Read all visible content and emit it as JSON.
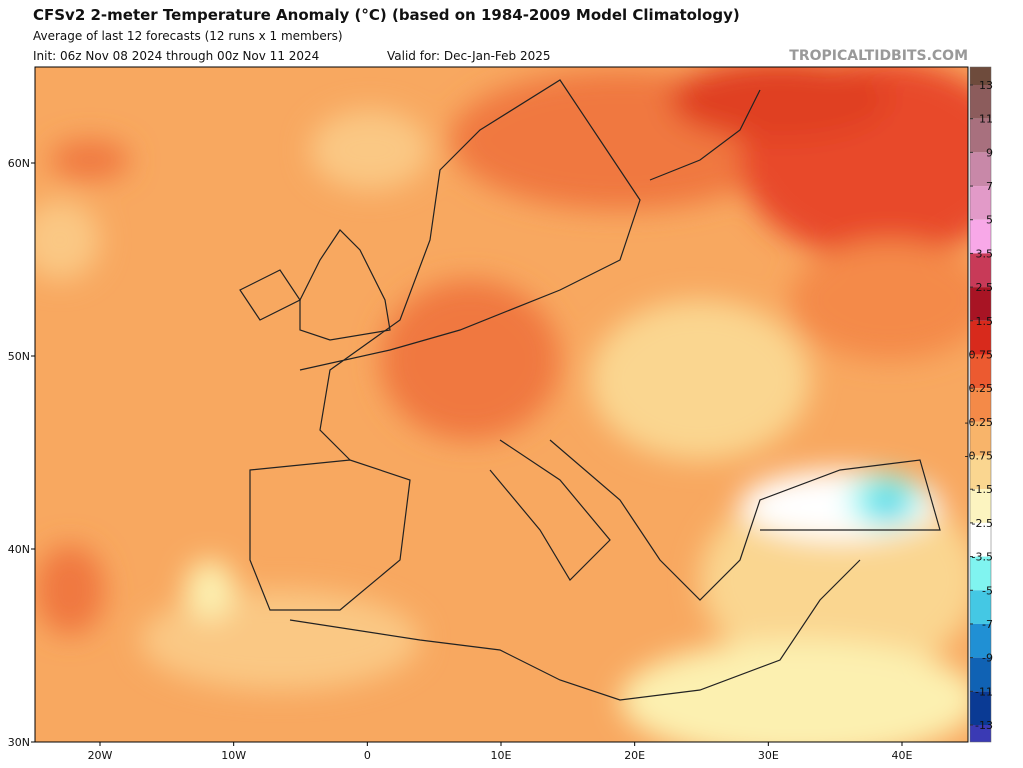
{
  "header": {
    "title": "CFSv2 2-meter Temperature Anomaly (°C) (based on 1984-2009 Model Climatology)",
    "subtitle": "Average of last 12 forecasts (12 runs x 1 members)",
    "init": "Init: 06z Nov 08 2024 through 00z Nov 11 2024",
    "valid": "Valid for: Dec-Jan-Feb 2025",
    "credit": "TROPICALTIDBITS.COM"
  },
  "map": {
    "lat_labels": [
      "60N",
      "50N",
      "40N",
      "30N"
    ],
    "lon_labels": [
      "20W",
      "10W",
      "0",
      "10E",
      "20E",
      "30E",
      "40E"
    ]
  },
  "colorbar": {
    "labels": [
      "13",
      "11",
      "9",
      "7",
      "5",
      "3.5",
      "2.5",
      "1.5",
      "0.75",
      "0.25",
      "-0.25",
      "-0.75",
      "-1.5",
      "-2.5",
      "-3.5",
      "-5",
      "-7",
      "-9",
      "-11",
      "-13"
    ],
    "colors": [
      "#6e4b3c",
      "#8c5c5c",
      "#a8707e",
      "#c888a8",
      "#e29ac8",
      "#f8a8e8",
      "#c83a58",
      "#a81424",
      "#d82a1c",
      "#ec5a30",
      "#f48a48",
      "#f8b46a",
      "#fad690",
      "#fcf4c0",
      "#ffffff",
      "#80f4f0",
      "#44c8e4",
      "#2090d4",
      "#1062b4",
      "#0a3a94",
      "#3a3ab4"
    ]
  }
}
